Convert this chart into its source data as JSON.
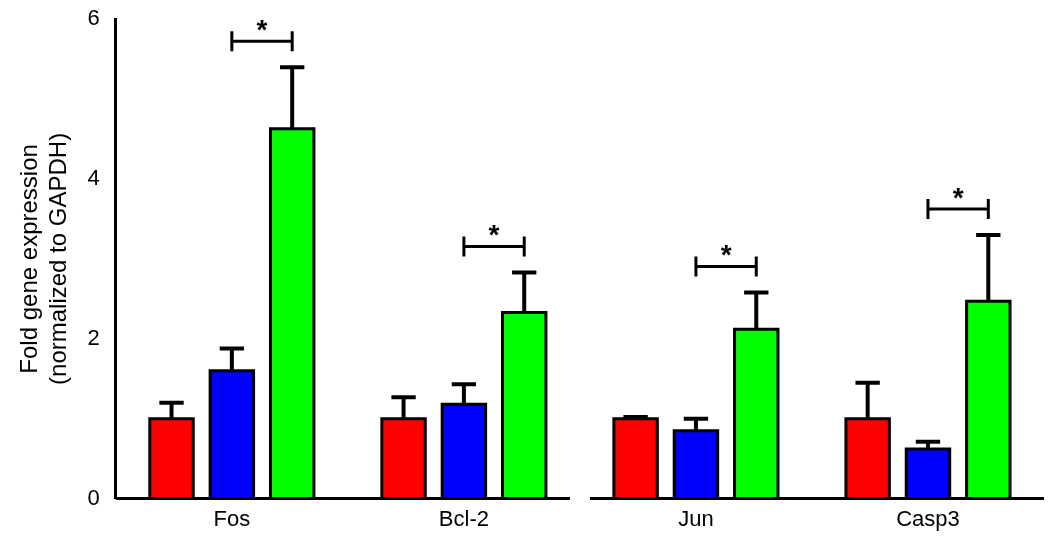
{
  "chart_data": {
    "type": "bar",
    "ylabel": "Fold gene expression\n(normalized to GAPDH)",
    "categories": [
      "Fos",
      "Bcl-2",
      "Jun",
      "Casp3"
    ],
    "series": [
      {
        "color": "#ff0000",
        "values": [
          1.0,
          1.0,
          1.0,
          1.0
        ],
        "errors": [
          0.2,
          0.27,
          0.02,
          0.45
        ]
      },
      {
        "color": "#0000ff",
        "values": [
          1.6,
          1.18,
          0.85,
          0.62
        ],
        "errors": [
          0.28,
          0.25,
          0.15,
          0.09
        ]
      },
      {
        "color": "#00ff00",
        "values": [
          4.63,
          2.33,
          2.12,
          2.47
        ],
        "errors": [
          0.77,
          0.5,
          0.46,
          0.83
        ]
      }
    ],
    "ylim": [
      0,
      6
    ],
    "yticks": [
      0,
      2,
      4,
      6
    ],
    "grid": false,
    "legend": false,
    "annotations": [
      "*",
      "*",
      "*",
      "*"
    ]
  }
}
